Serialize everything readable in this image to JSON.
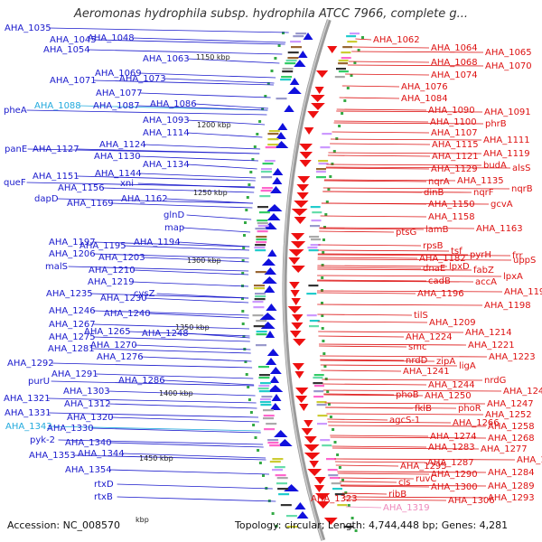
{
  "title": "Aeromonas hydrophila subsp. hydrophila ATCC 7966, complete g...",
  "footer": {
    "accession": "Accession: NC_008570",
    "kbp_stub": "kbp",
    "topology": "Topology: circular; Length: 4,744,448 bp; Genes: 4,281"
  },
  "colors": {
    "left_label": "#1a1acc",
    "right_label": "#dd1111",
    "highlight_left": "#22aadd",
    "highlight_right": "#ee88bb",
    "backbone": "#888888"
  },
  "scale_ticks": [
    "1150 kbp",
    "1200 kbp",
    "1250 kbp",
    "1300 kbp",
    "1350 kbp",
    "1400 kbp",
    "1450 kbp"
  ],
  "left_labels": [
    {
      "text": "AHA_1035",
      "style": "normal"
    },
    {
      "text": "AHA_1045",
      "style": "normal"
    },
    {
      "text": "AHA_1048",
      "style": "normal"
    },
    {
      "text": "AHA_1054",
      "style": "normal"
    },
    {
      "text": "AHA_1063",
      "style": "normal"
    },
    {
      "text": "AHA_1069",
      "style": "normal"
    },
    {
      "text": "AHA_1071",
      "style": "normal"
    },
    {
      "text": "AHA_1073",
      "style": "normal"
    },
    {
      "text": "AHA_1077",
      "style": "normal"
    },
    {
      "text": "pheA",
      "style": "normal"
    },
    {
      "text": "AHA_1088",
      "style": "highlight"
    },
    {
      "text": "AHA_1087",
      "style": "normal"
    },
    {
      "text": "AHA_1086",
      "style": "normal"
    },
    {
      "text": "AHA_1093",
      "style": "normal"
    },
    {
      "text": "AHA_1114",
      "style": "normal"
    },
    {
      "text": "AHA_1124",
      "style": "normal"
    },
    {
      "text": "panE",
      "style": "normal"
    },
    {
      "text": "AHA_1127",
      "style": "normal"
    },
    {
      "text": "AHA_1130",
      "style": "normal"
    },
    {
      "text": "AHA_1134",
      "style": "normal"
    },
    {
      "text": "AHA_1144",
      "style": "normal"
    },
    {
      "text": "AHA_1151",
      "style": "normal"
    },
    {
      "text": "queF",
      "style": "normal"
    },
    {
      "text": "AHA_1156",
      "style": "normal"
    },
    {
      "text": "xni",
      "style": "normal"
    },
    {
      "text": "dapD",
      "style": "normal"
    },
    {
      "text": "AHA_1162",
      "style": "normal"
    },
    {
      "text": "AHA_1169",
      "style": "normal"
    },
    {
      "text": "glnD",
      "style": "normal"
    },
    {
      "text": "map",
      "style": "normal"
    },
    {
      "text": "AHA_1194",
      "style": "normal"
    },
    {
      "text": "AHA_1197",
      "style": "normal"
    },
    {
      "text": "AHA_1195",
      "style": "normal"
    },
    {
      "text": "AHA_1206",
      "style": "normal"
    },
    {
      "text": "AHA_1203",
      "style": "normal"
    },
    {
      "text": "malS",
      "style": "normal"
    },
    {
      "text": "AHA_1210",
      "style": "normal"
    },
    {
      "text": "AHA_1219",
      "style": "normal"
    },
    {
      "text": "AHA_1235",
      "style": "normal"
    },
    {
      "text": "cysZ",
      "style": "normal"
    },
    {
      "text": "AHA_1230",
      "style": "normal"
    },
    {
      "text": "AHA_1246",
      "style": "normal"
    },
    {
      "text": "AHA_1240",
      "style": "normal"
    },
    {
      "text": "AHA_1267",
      "style": "normal"
    },
    {
      "text": "AHA_1265",
      "style": "normal"
    },
    {
      "text": "AHA_1248",
      "style": "normal"
    },
    {
      "text": "AHA_1275",
      "style": "normal"
    },
    {
      "text": "AHA_1270",
      "style": "normal"
    },
    {
      "text": "AHA_1281",
      "style": "normal"
    },
    {
      "text": "AHA_1276",
      "style": "normal"
    },
    {
      "text": "AHA_1292",
      "style": "normal"
    },
    {
      "text": "AHA_1291",
      "style": "normal"
    },
    {
      "text": "AHA_1286",
      "style": "normal"
    },
    {
      "text": "purU",
      "style": "normal"
    },
    {
      "text": "AHA_1303",
      "style": "normal"
    },
    {
      "text": "AHA_1312",
      "style": "normal"
    },
    {
      "text": "AHA_1321",
      "style": "normal"
    },
    {
      "text": "AHA_1331",
      "style": "normal"
    },
    {
      "text": "AHA_1320",
      "style": "normal"
    },
    {
      "text": "AHA_1343",
      "style": "highlight"
    },
    {
      "text": "AHA_1330",
      "style": "normal"
    },
    {
      "text": "pyk-2",
      "style": "normal"
    },
    {
      "text": "AHA_1340",
      "style": "normal"
    },
    {
      "text": "AHA_1353",
      "style": "normal"
    },
    {
      "text": "AHA_1344",
      "style": "normal"
    },
    {
      "text": "AHA_1354",
      "style": "normal"
    },
    {
      "text": "rtxD",
      "style": "normal"
    },
    {
      "text": "rtxB",
      "style": "normal"
    }
  ],
  "right_labels": [
    {
      "text": "AHA_1062",
      "style": "normal"
    },
    {
      "text": "AHA_1064",
      "style": "normal"
    },
    {
      "text": "AHA_1065",
      "style": "normal"
    },
    {
      "text": "AHA_1068",
      "style": "normal"
    },
    {
      "text": "AHA_1070",
      "style": "normal"
    },
    {
      "text": "AHA_1074",
      "style": "normal"
    },
    {
      "text": "AHA_1076",
      "style": "normal"
    },
    {
      "text": "AHA_1084",
      "style": "normal"
    },
    {
      "text": "AHA_1090",
      "style": "normal"
    },
    {
      "text": "AHA_1091",
      "style": "normal"
    },
    {
      "text": "AHA_1100",
      "style": "normal"
    },
    {
      "text": "phrB",
      "style": "normal"
    },
    {
      "text": "AHA_1107",
      "style": "normal"
    },
    {
      "text": "AHA_1111",
      "style": "normal"
    },
    {
      "text": "AHA_1115",
      "style": "normal"
    },
    {
      "text": "AHA_1119",
      "style": "normal"
    },
    {
      "text": "AHA_1121",
      "style": "normal"
    },
    {
      "text": "budA",
      "style": "normal"
    },
    {
      "text": "AHA_1129",
      "style": "normal"
    },
    {
      "text": "alsS",
      "style": "normal"
    },
    {
      "text": "nqrA",
      "style": "normal"
    },
    {
      "text": "AHA_1135",
      "style": "normal"
    },
    {
      "text": "dinB",
      "style": "normal"
    },
    {
      "text": "nqrF",
      "style": "normal"
    },
    {
      "text": "nqrB",
      "style": "normal"
    },
    {
      "text": "AHA_1150",
      "style": "normal"
    },
    {
      "text": "gcvA",
      "style": "normal"
    },
    {
      "text": "AHA_1158",
      "style": "normal"
    },
    {
      "text": "AHA_1163",
      "style": "normal"
    },
    {
      "text": "ptsG",
      "style": "normal"
    },
    {
      "text": "lamB",
      "style": "normal"
    },
    {
      "text": "rpsB",
      "style": "normal"
    },
    {
      "text": "tsf",
      "style": "normal"
    },
    {
      "text": "pyrH",
      "style": "normal"
    },
    {
      "text": "frr",
      "style": "normal"
    },
    {
      "text": "AHA_1182",
      "style": "normal"
    },
    {
      "text": "uppS",
      "style": "normal"
    },
    {
      "text": "lpxD",
      "style": "normal"
    },
    {
      "text": "fabZ",
      "style": "normal"
    },
    {
      "text": "dnaE",
      "style": "normal"
    },
    {
      "text": "lpxA",
      "style": "normal"
    },
    {
      "text": "accA",
      "style": "normal"
    },
    {
      "text": "cadB",
      "style": "normal"
    },
    {
      "text": "AHA_1192",
      "style": "normal"
    },
    {
      "text": "AHA_1196",
      "style": "normal"
    },
    {
      "text": "AHA_1198",
      "style": "normal"
    },
    {
      "text": "tilS",
      "style": "normal"
    },
    {
      "text": "AHA_1209",
      "style": "normal"
    },
    {
      "text": "AHA_1214",
      "style": "normal"
    },
    {
      "text": "AHA_1224",
      "style": "normal"
    },
    {
      "text": "AHA_1221",
      "style": "normal"
    },
    {
      "text": "smc",
      "style": "normal"
    },
    {
      "text": "AHA_1223",
      "style": "normal"
    },
    {
      "text": "nrdD",
      "style": "normal"
    },
    {
      "text": "zipA",
      "style": "normal"
    },
    {
      "text": "ligA",
      "style": "normal"
    },
    {
      "text": "AHA_1241",
      "style": "normal"
    },
    {
      "text": "nrdG",
      "style": "normal"
    },
    {
      "text": "AHA_1244",
      "style": "normal"
    },
    {
      "text": "AHA_1242",
      "style": "normal"
    },
    {
      "text": "phoB",
      "style": "normal"
    },
    {
      "text": "AHA_1250",
      "style": "normal"
    },
    {
      "text": "AHA_1247",
      "style": "normal"
    },
    {
      "text": "fklB",
      "style": "normal"
    },
    {
      "text": "phoR",
      "style": "normal"
    },
    {
      "text": "AHA_1252",
      "style": "normal"
    },
    {
      "text": "agcS-1",
      "style": "normal"
    },
    {
      "text": "AHA_1266",
      "style": "normal"
    },
    {
      "text": "AHA_1258",
      "style": "normal"
    },
    {
      "text": "AHA_1274",
      "style": "normal"
    },
    {
      "text": "AHA_1268",
      "style": "normal"
    },
    {
      "text": "AHA_1283",
      "style": "normal"
    },
    {
      "text": "AHA_1277",
      "style": "normal"
    },
    {
      "text": "AHA_1278",
      "style": "normal"
    },
    {
      "text": "AHA_1287",
      "style": "normal"
    },
    {
      "text": "AHA_1295",
      "style": "normal"
    },
    {
      "text": "AHA_1284",
      "style": "normal"
    },
    {
      "text": "AHA_1290",
      "style": "normal"
    },
    {
      "text": "ruvC",
      "style": "normal"
    },
    {
      "text": "cls",
      "style": "normal"
    },
    {
      "text": "AHA_1289",
      "style": "normal"
    },
    {
      "text": "AHA_1300",
      "style": "normal"
    },
    {
      "text": "ribB",
      "style": "normal"
    },
    {
      "text": "AHA_1306",
      "style": "normal"
    },
    {
      "text": "AHA_1293",
      "style": "normal"
    },
    {
      "text": "AHA_1323",
      "style": "normal"
    },
    {
      "text": "AHA_1319",
      "style": "highlight"
    }
  ]
}
